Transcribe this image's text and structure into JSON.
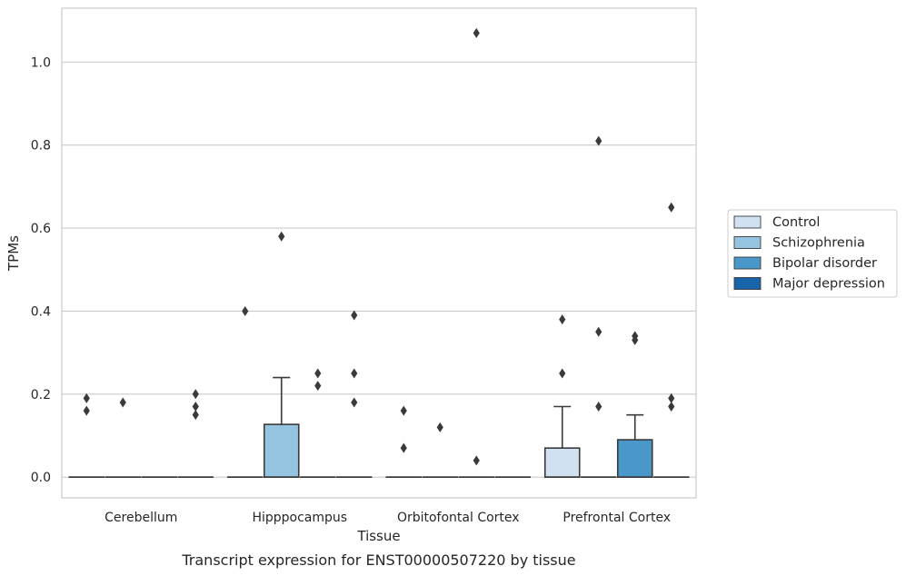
{
  "chart_data": {
    "type": "boxplot",
    "caption": "Transcript expression for ENST00000507220 by tissue",
    "xlabel": "Tissue",
    "ylabel": "TPMs",
    "ylim": [
      -0.05,
      1.13
    ],
    "yticks": [
      0.0,
      0.2,
      0.4,
      0.6,
      0.8,
      1.0
    ],
    "ytick_labels": [
      "0.0",
      "0.2",
      "0.4",
      "0.6",
      "0.8",
      "1.0"
    ],
    "grid": "horizontal",
    "legend_position": "right",
    "categories": [
      "Cerebellum",
      "Hipppocampus",
      "Orbitofontal Cortex",
      "Prefrontal Cortex"
    ],
    "series": [
      {
        "name": "Control",
        "color": "#d0e1f2",
        "boxes": [
          {
            "q1": 0,
            "median": 0,
            "q3": 0,
            "whisker_low": 0,
            "whisker_high": 0,
            "outliers": [
              0.19,
              0.16
            ]
          },
          {
            "q1": 0,
            "median": 0,
            "q3": 0,
            "whisker_low": 0,
            "whisker_high": 0,
            "outliers": [
              0.4
            ]
          },
          {
            "q1": 0,
            "median": 0,
            "q3": 0,
            "whisker_low": 0,
            "whisker_high": 0,
            "outliers": [
              0.16,
              0.07
            ]
          },
          {
            "q1": 0,
            "median": 0,
            "q3": 0.07,
            "whisker_low": 0,
            "whisker_high": 0.17,
            "outliers": [
              0.38,
              0.25
            ]
          }
        ]
      },
      {
        "name": "Schizophrenia",
        "color": "#94c4df",
        "boxes": [
          {
            "q1": 0,
            "median": 0,
            "q3": 0,
            "whisker_low": 0,
            "whisker_high": 0,
            "outliers": [
              0.18
            ]
          },
          {
            "q1": 0,
            "median": 0,
            "q3": 0.127,
            "whisker_low": 0,
            "whisker_high": 0.24,
            "outliers": [
              0.58
            ]
          },
          {
            "q1": 0,
            "median": 0,
            "q3": 0,
            "whisker_low": 0,
            "whisker_high": 0,
            "outliers": [
              0.12
            ]
          },
          {
            "q1": 0,
            "median": 0,
            "q3": 0,
            "whisker_low": 0,
            "whisker_high": 0,
            "outliers": [
              0.81,
              0.35,
              0.17
            ]
          }
        ]
      },
      {
        "name": "Bipolar disorder",
        "color": "#4a98c9",
        "boxes": [
          {
            "q1": 0,
            "median": 0,
            "q3": 0,
            "whisker_low": 0,
            "whisker_high": 0,
            "outliers": []
          },
          {
            "q1": 0,
            "median": 0,
            "q3": 0,
            "whisker_low": 0,
            "whisker_high": 0,
            "outliers": [
              0.25,
              0.22
            ]
          },
          {
            "q1": 0,
            "median": 0,
            "q3": 0,
            "whisker_low": 0,
            "whisker_high": 0,
            "outliers": [
              1.07,
              0.04
            ]
          },
          {
            "q1": 0,
            "median": 0,
            "q3": 0.09,
            "whisker_low": 0,
            "whisker_high": 0.15,
            "outliers": [
              0.34,
              0.33
            ]
          }
        ]
      },
      {
        "name": "Major depression",
        "color": "#1764ab",
        "boxes": [
          {
            "q1": 0,
            "median": 0,
            "q3": 0,
            "whisker_low": 0,
            "whisker_high": 0,
            "outliers": [
              0.2,
              0.17,
              0.15
            ]
          },
          {
            "q1": 0,
            "median": 0,
            "q3": 0,
            "whisker_low": 0,
            "whisker_high": 0,
            "outliers": [
              0.39,
              0.25,
              0.18
            ]
          },
          {
            "q1": 0,
            "median": 0,
            "q3": 0,
            "whisker_low": 0,
            "whisker_high": 0,
            "outliers": []
          },
          {
            "q1": 0,
            "median": 0,
            "q3": 0,
            "whisker_low": 0,
            "whisker_high": 0,
            "outliers": [
              0.65,
              0.19,
              0.17
            ]
          }
        ]
      }
    ]
  }
}
